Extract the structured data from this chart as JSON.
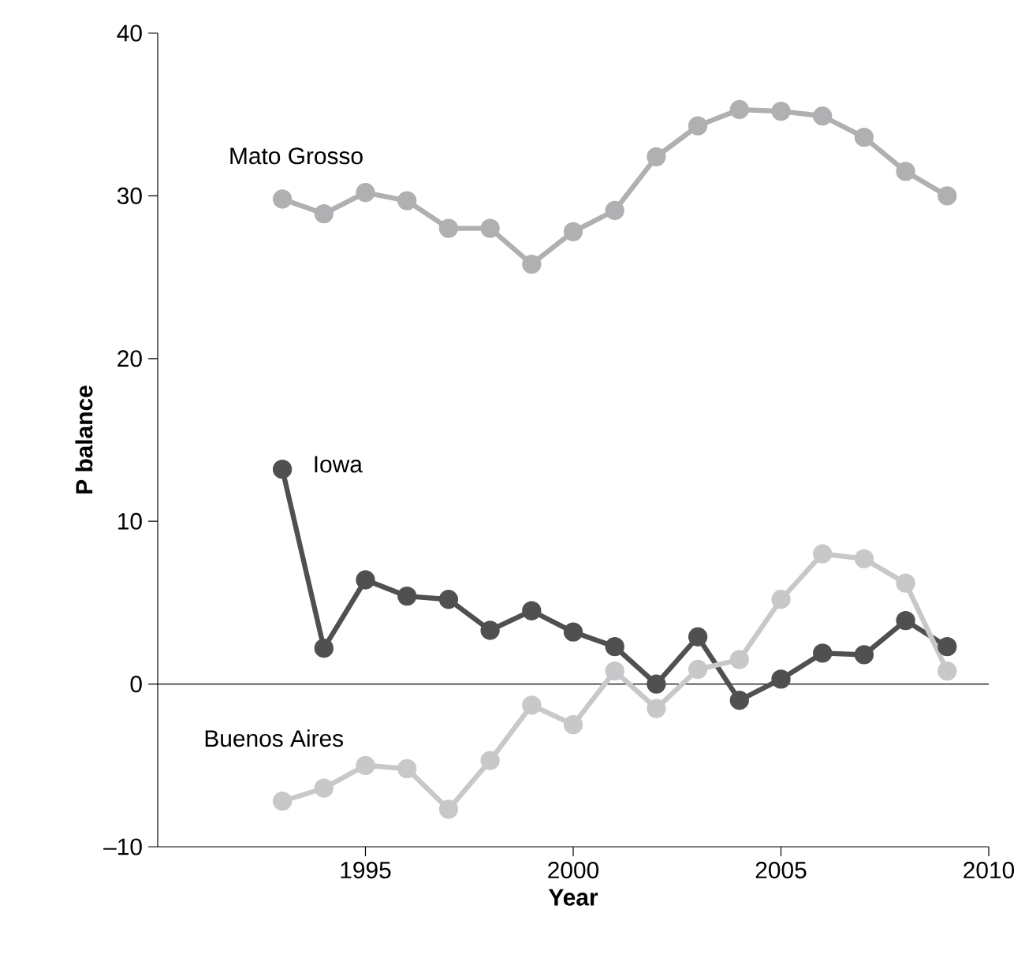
{
  "chart_data": {
    "type": "line",
    "xlabel": "Year",
    "ylabel": "P balance",
    "x": [
      1993,
      1994,
      1995,
      1996,
      1997,
      1998,
      1999,
      2000,
      2001,
      2002,
      2003,
      2004,
      2005,
      2006,
      2007,
      2008,
      2009
    ],
    "series": [
      {
        "name": "Mato Grosso",
        "color": "#b0b0b3",
        "values": [
          29.8,
          28.9,
          30.2,
          29.7,
          28.0,
          28.0,
          25.8,
          27.8,
          29.1,
          32.4,
          34.3,
          35.3,
          35.2,
          34.9,
          33.6,
          31.5,
          30.0
        ]
      },
      {
        "name": "Iowa",
        "color": "#505050",
        "values": [
          13.2,
          2.2,
          6.4,
          5.4,
          5.2,
          3.3,
          4.5,
          3.2,
          2.3,
          0.0,
          2.9,
          -1.0,
          0.3,
          1.9,
          1.8,
          3.9,
          2.3
        ]
      },
      {
        "name": "Buenos Aires",
        "color": "#c8c8ca",
        "values": [
          -7.2,
          -6.4,
          -5.0,
          -5.2,
          -7.7,
          -4.7,
          -1.3,
          -2.5,
          0.8,
          -1.5,
          0.9,
          1.5,
          5.2,
          8.0,
          7.7,
          6.2,
          0.8
        ]
      }
    ],
    "xlim": [
      1990,
      2010
    ],
    "xticks": [
      1995,
      2000,
      2005,
      2010
    ],
    "ylim": [
      -10,
      40
    ],
    "yticks": [
      {
        "value": -10,
        "label": "–10"
      },
      0,
      10,
      20,
      30,
      40
    ],
    "ref_lines": [
      {
        "axis": "y",
        "value": 0,
        "color": "#000000"
      }
    ],
    "marker": "circle",
    "line_style": "solid"
  }
}
